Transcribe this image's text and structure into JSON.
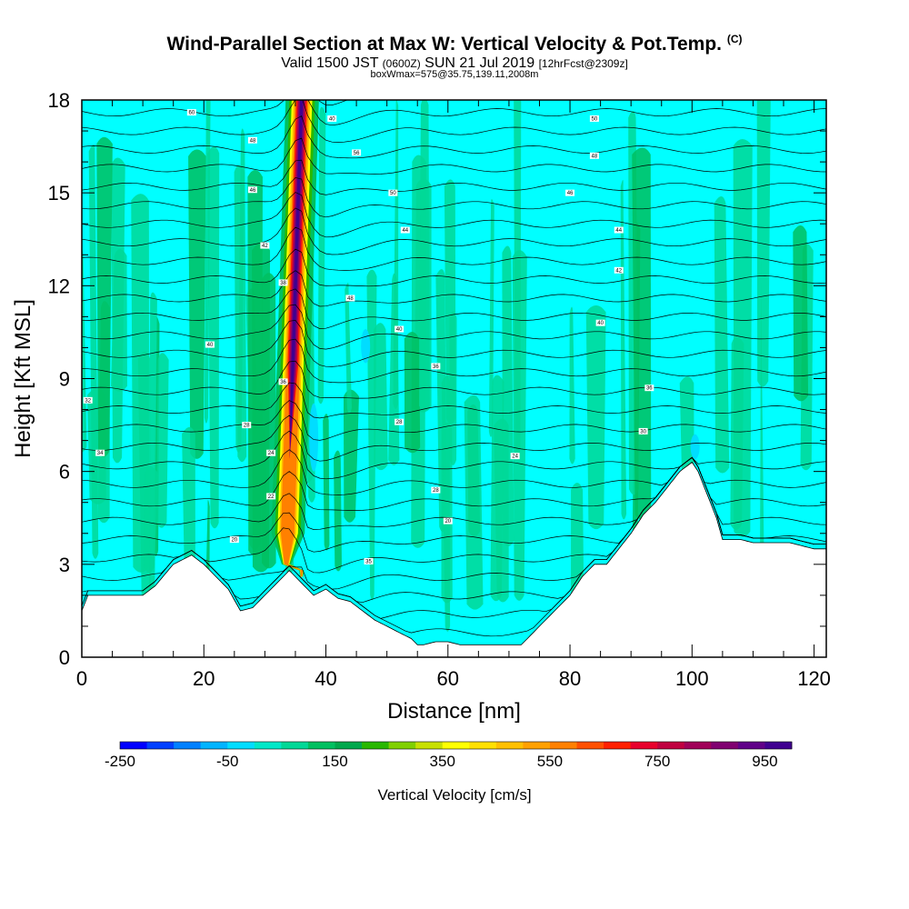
{
  "header": {
    "title_main": "Wind-Parallel Section at Max W: Vertical Velocity & Pot.Temp.",
    "title_mark": "(C)",
    "valid_prefix": "Valid 1500 JST",
    "valid_utc": "(0600Z)",
    "valid_date": "SUN 21 Jul 2019",
    "forecast": "[12hrFcst@2309z]",
    "box_info": "boxWmax=575@35.75,139.11,2008m"
  },
  "chart_data": {
    "type": "heatmap",
    "xlabel": "Distance [nm]",
    "ylabel": "Height [Kft MSL]",
    "xlim": [
      0,
      122
    ],
    "ylim": [
      0,
      18
    ],
    "x_ticks": [
      0,
      20,
      40,
      60,
      80,
      100,
      120
    ],
    "x_tick_labels": [
      "0",
      "20",
      "40",
      "60",
      "80",
      "100",
      "120"
    ],
    "y_ticks": [
      0,
      3,
      6,
      9,
      12,
      15,
      18
    ],
    "y_tick_labels": [
      "0",
      "3",
      "6",
      "9",
      "12",
      "15",
      "18"
    ],
    "background_value_color": "#00ffff",
    "terrain_color": "#ffffff",
    "terrain_profile": {
      "x": [
        0,
        1,
        5,
        10,
        12,
        15,
        18,
        20,
        22,
        24,
        26,
        28,
        30,
        32,
        34,
        36,
        38,
        40,
        42,
        44,
        46,
        48,
        50,
        52,
        54,
        55,
        56,
        58,
        60,
        62,
        64,
        66,
        68,
        70,
        72,
        74,
        76,
        78,
        80,
        82,
        84,
        86,
        88,
        90,
        92,
        94,
        96,
        98,
        100,
        101,
        102,
        103,
        104,
        105,
        106,
        108,
        110,
        112,
        114,
        116,
        118,
        120,
        122
      ],
      "kft": [
        1.5,
        2.0,
        2.0,
        2.0,
        2.3,
        3.0,
        3.3,
        3.0,
        2.6,
        2.2,
        1.5,
        1.6,
        2.0,
        2.4,
        2.8,
        2.4,
        2.0,
        2.2,
        1.9,
        1.8,
        1.5,
        1.2,
        1.0,
        0.8,
        0.6,
        0.4,
        0.4,
        0.5,
        0.5,
        0.4,
        0.4,
        0.4,
        0.4,
        0.4,
        0.4,
        0.8,
        1.2,
        1.6,
        2.0,
        2.6,
        3.0,
        3.0,
        3.5,
        4.0,
        4.6,
        5.0,
        5.5,
        6.0,
        6.3,
        6.0,
        5.5,
        5.0,
        4.5,
        3.8,
        3.8,
        3.8,
        3.7,
        3.7,
        3.7,
        3.7,
        3.6,
        3.5,
        3.5
      ]
    },
    "updraft_core": {
      "center_x_nm": [
        33.5,
        34.0,
        34.5,
        35.0,
        35.5,
        36.0
      ],
      "center_kft": [
        3.0,
        6.0,
        9.0,
        12.0,
        15.0,
        18.0
      ],
      "peak_cm_s": 975
    },
    "downdraft_features": [
      {
        "x_nm": 38.0,
        "kft_bottom": 6.0,
        "kft_top": 8.2,
        "value_cm_s": -50
      },
      {
        "x_nm": 46.5,
        "kft_bottom": 9.5,
        "kft_top": 10.6,
        "value_cm_s": -50
      },
      {
        "x_nm": 100.5,
        "kft_bottom": 6.4,
        "kft_top": 7.2,
        "value_cm_s": -50
      }
    ],
    "contour_labels": [
      {
        "text": "60",
        "x": 18,
        "kft": 17.6
      },
      {
        "text": "48",
        "x": 28,
        "kft": 16.7
      },
      {
        "text": "46",
        "x": 28,
        "kft": 15.1
      },
      {
        "text": "42",
        "x": 30,
        "kft": 13.3
      },
      {
        "text": "40",
        "x": 21,
        "kft": 10.1
      },
      {
        "text": "38",
        "x": 33,
        "kft": 12.1
      },
      {
        "text": "36",
        "x": 33,
        "kft": 8.9
      },
      {
        "text": "32",
        "x": 1,
        "kft": 8.3
      },
      {
        "text": "34",
        "x": 3,
        "kft": 6.6
      },
      {
        "text": "28",
        "x": 27,
        "kft": 7.5
      },
      {
        "text": "24",
        "x": 31,
        "kft": 6.6
      },
      {
        "text": "22",
        "x": 31,
        "kft": 5.2
      },
      {
        "text": "20",
        "x": 25,
        "kft": 3.8
      },
      {
        "text": "40",
        "x": 41,
        "kft": 17.4
      },
      {
        "text": "56",
        "x": 45,
        "kft": 16.3
      },
      {
        "text": "50",
        "x": 51,
        "kft": 15.0
      },
      {
        "text": "44",
        "x": 53,
        "kft": 13.8
      },
      {
        "text": "48",
        "x": 44,
        "kft": 11.6
      },
      {
        "text": "40",
        "x": 52,
        "kft": 10.6
      },
      {
        "text": "36",
        "x": 58,
        "kft": 9.4
      },
      {
        "text": "28",
        "x": 52,
        "kft": 7.6
      },
      {
        "text": "28",
        "x": 58,
        "kft": 5.4
      },
      {
        "text": "20",
        "x": 60,
        "kft": 4.4
      },
      {
        "text": "35",
        "x": 47,
        "kft": 3.1
      },
      {
        "text": "24",
        "x": 71,
        "kft": 6.5
      },
      {
        "text": "50",
        "x": 84,
        "kft": 17.4
      },
      {
        "text": "48",
        "x": 84,
        "kft": 16.2
      },
      {
        "text": "46",
        "x": 80,
        "kft": 15.0
      },
      {
        "text": "44",
        "x": 88,
        "kft": 13.8
      },
      {
        "text": "42",
        "x": 88,
        "kft": 12.5
      },
      {
        "text": "40",
        "x": 85,
        "kft": 10.8
      },
      {
        "text": "36",
        "x": 93,
        "kft": 8.7
      },
      {
        "text": "30",
        "x": 92,
        "kft": 7.3
      }
    ]
  },
  "colorbar": {
    "title": "Vertical Velocity [cm/s]",
    "min": -250,
    "step": 50,
    "colors": [
      "#0000ff",
      "#0040ff",
      "#0080ff",
      "#00b4ff",
      "#00ddff",
      "#00e8c8",
      "#00d896",
      "#00c060",
      "#00a84c",
      "#28b800",
      "#80d000",
      "#c8e000",
      "#ffff00",
      "#ffe000",
      "#ffc000",
      "#ffa000",
      "#ff8000",
      "#ff5000",
      "#ff2000",
      "#e8002c",
      "#c00040",
      "#a00058",
      "#800070",
      "#600088",
      "#400090"
    ],
    "tick_labels": [
      "-250",
      "-50",
      "150",
      "350",
      "550",
      "750",
      "950"
    ],
    "tick_values": [
      -250,
      -50,
      150,
      350,
      550,
      750,
      950
    ]
  }
}
